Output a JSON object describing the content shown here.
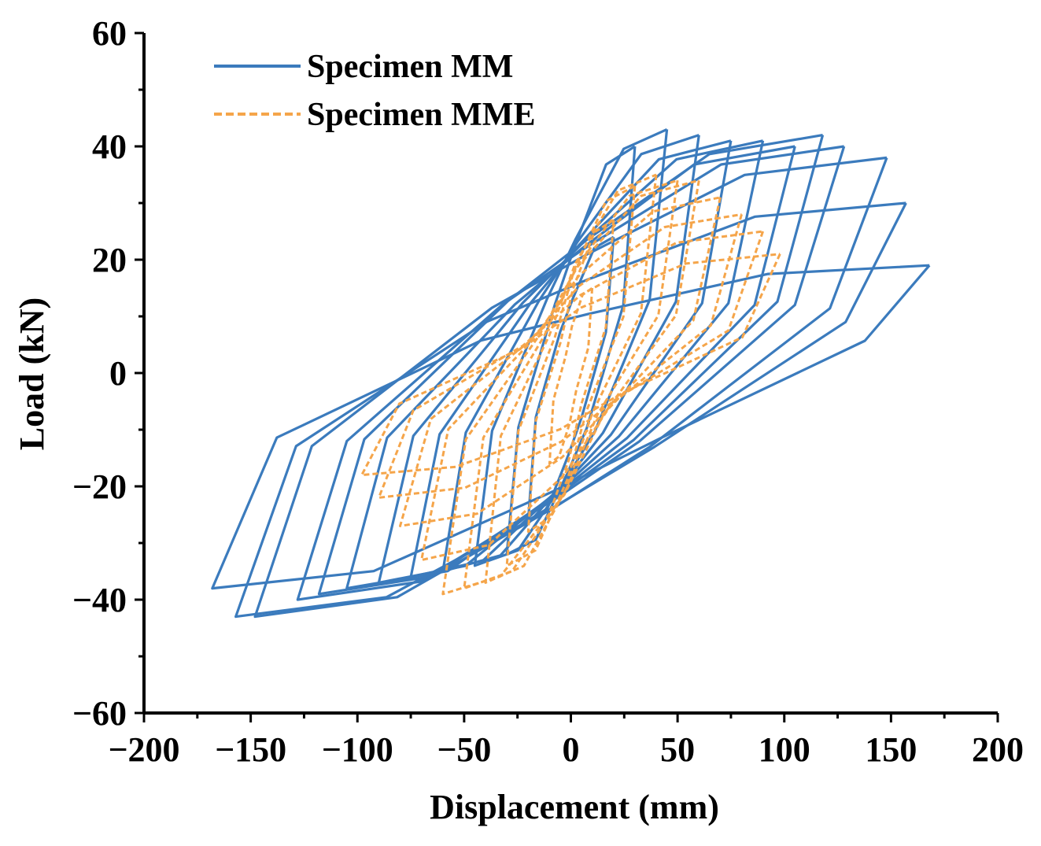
{
  "chart_data": {
    "type": "line",
    "title": "",
    "xlabel": "Displacement (mm)",
    "ylabel": "Load (kN)",
    "xlim": [
      -200,
      200
    ],
    "ylim": [
      -60,
      60
    ],
    "xticks": [
      -200,
      -150,
      -100,
      -50,
      0,
      50,
      100,
      150,
      200
    ],
    "yticks": [
      -60,
      -40,
      -20,
      0,
      20,
      40,
      60
    ],
    "xtick_labels": [
      "−200",
      "−150",
      "−100",
      "−50",
      "0",
      "50",
      "100",
      "150",
      "200"
    ],
    "ytick_labels": [
      "−60",
      "−40",
      "−20",
      "0",
      "20",
      "40",
      "60"
    ],
    "grid": false,
    "legend_position": "top-left",
    "series": [
      {
        "name": "Specimen MM",
        "color": "#3b7bbd",
        "style": "solid",
        "cycles": [
          {
            "disp": 20,
            "load_pos": 24,
            "load_neg": -26
          },
          {
            "disp": 30,
            "load_pos": 40,
            "load_neg": -32
          },
          {
            "disp": 45,
            "load_pos": 43,
            "load_neg": -34
          },
          {
            "disp": 60,
            "load_pos": 42,
            "load_neg": -35
          },
          {
            "disp": 75,
            "load_pos": 41,
            "load_neg": -36
          },
          {
            "disp": 90,
            "load_pos": 41,
            "load_neg": -37
          },
          {
            "disp": 105,
            "load_pos": 40,
            "load_neg": -38
          },
          {
            "disp": 118,
            "load_pos": 42,
            "load_neg": -39
          },
          {
            "disp": 128,
            "load_pos": 40,
            "load_neg": -40
          },
          {
            "disp": 148,
            "load_pos": 38,
            "load_neg": -43
          },
          {
            "disp": 157,
            "load_pos": 30,
            "load_neg": -43
          },
          {
            "disp": 168,
            "load_pos": 19,
            "load_neg": -38
          }
        ]
      },
      {
        "name": "Specimen MME",
        "color": "#f5a54a",
        "style": "dashed",
        "cycles": [
          {
            "disp": 10,
            "load_pos": 15,
            "load_neg": -16
          },
          {
            "disp": 20,
            "load_pos": 27,
            "load_neg": -28
          },
          {
            "disp": 30,
            "load_pos": 33,
            "load_neg": -34
          },
          {
            "disp": 40,
            "load_pos": 35,
            "load_neg": -37
          },
          {
            "disp": 50,
            "load_pos": 34,
            "load_neg": -38
          },
          {
            "disp": 60,
            "load_pos": 34,
            "load_neg": -39
          },
          {
            "disp": 70,
            "load_pos": 31,
            "load_neg": -33
          },
          {
            "disp": 80,
            "load_pos": 28,
            "load_neg": -27
          },
          {
            "disp": 90,
            "load_pos": 25,
            "load_neg": -22
          },
          {
            "disp": 98,
            "load_pos": 21,
            "load_neg": -18
          }
        ]
      }
    ]
  }
}
